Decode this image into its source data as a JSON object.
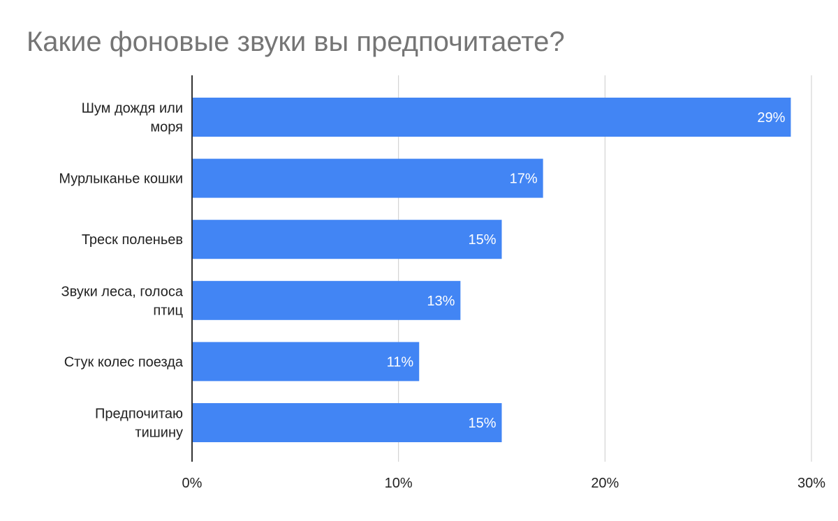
{
  "chart_data": {
    "type": "bar",
    "orientation": "horizontal",
    "title": "Какие фоновые звуки вы предпочитаете?",
    "categories": [
      [
        "Шум дождя или",
        "моря"
      ],
      [
        "Мурлыканье кошки"
      ],
      [
        "Треск поленьев"
      ],
      [
        "Звуки леса, голоса",
        "птиц"
      ],
      [
        "Стук колес поезда"
      ],
      [
        "Предпочитаю",
        "тишину"
      ]
    ],
    "values": [
      29,
      17,
      15,
      13,
      11,
      15
    ],
    "value_labels": [
      "29%",
      "17%",
      "15%",
      "13%",
      "11%",
      "15%"
    ],
    "xlim": [
      0,
      30
    ],
    "xticks": [
      0,
      10,
      20,
      30
    ],
    "xtick_labels": [
      "0%",
      "10%",
      "20%",
      "30%"
    ],
    "xlabel": "",
    "ylabel": "",
    "grid": true,
    "legend": "none",
    "colors": {
      "bar": "#4285f4",
      "grid": "#cccccc",
      "axis": "#333333",
      "label_text": "#222222",
      "value_text": "#ffffff",
      "title_text": "#757575"
    }
  }
}
